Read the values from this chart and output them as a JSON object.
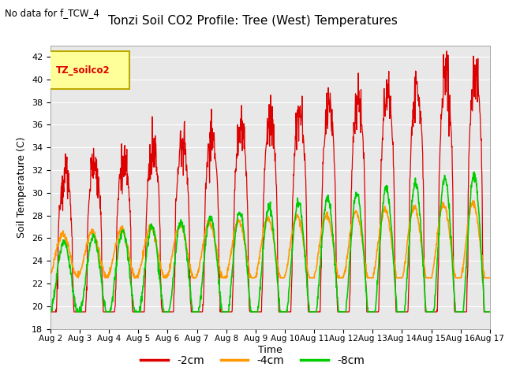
{
  "title": "Tonzi Soil CO2 Profile: Tree (West) Temperatures",
  "subtitle": "No data for f_TCW_4",
  "ylabel": "Soil Temperature (C)",
  "xlabel": "Time",
  "ylim": [
    18,
    43
  ],
  "yticks": [
    18,
    20,
    22,
    24,
    26,
    28,
    30,
    32,
    34,
    36,
    38,
    40,
    42
  ],
  "background_color": "#e8e8e8",
  "fig_background": "#ffffff",
  "legend_label": "TZ_soilco2",
  "legend_bg": "#ffff99",
  "legend_border": "#bbaa00",
  "series": {
    "neg2cm": {
      "label": "-2cm",
      "color": "#dd0000"
    },
    "neg4cm": {
      "label": "-4cm",
      "color": "#ff9900"
    },
    "neg8cm": {
      "label": "-8cm",
      "color": "#00cc00"
    }
  },
  "xtick_labels": [
    "Aug 2",
    "Aug 3",
    "Aug 4",
    "Aug 5",
    "Aug 6",
    "Aug 7",
    "Aug 8",
    "Aug 9",
    "Aug 10",
    "Aug 11",
    "Aug 12",
    "Aug 13",
    "Aug 14",
    "Aug 15",
    "Aug 16",
    "Aug 17"
  ],
  "n_days": 15,
  "pts_per_day": 96
}
